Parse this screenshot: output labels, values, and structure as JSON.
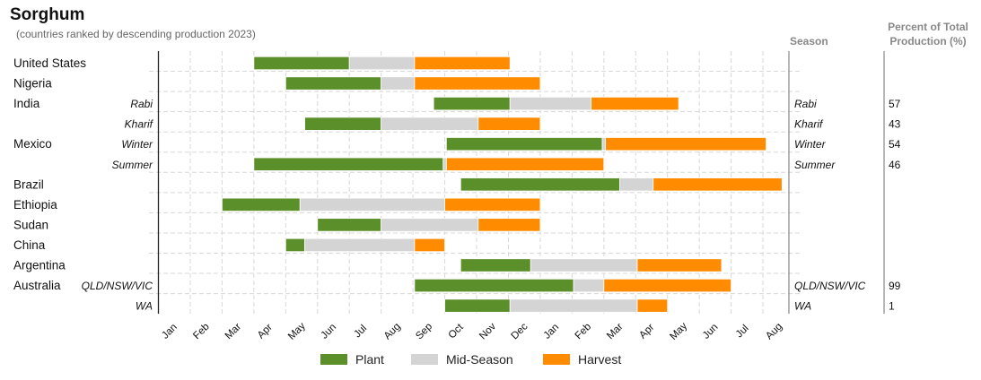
{
  "title": "Sorghum",
  "subtitle": "(countries ranked by descending production 2023)",
  "headers": {
    "season": "Season",
    "percent_line1": "Percent of Total",
    "percent_line2": "Production (%)"
  },
  "colors": {
    "Plant": "#5a8f29",
    "Mid-Season": "#d4d4d4",
    "Harvest": "#ff8c00"
  },
  "chart_data": {
    "type": "gantt",
    "x_unit": "month (0 = start of January, 20 = start of September of following year)",
    "months": [
      "Jan",
      "Feb",
      "Mar",
      "Apr",
      "May",
      "Jun",
      "Jul",
      "Aug",
      "Sep",
      "Oct",
      "Nov",
      "Dec",
      "Jan",
      "Feb",
      "Mar",
      "Apr",
      "May",
      "Jun",
      "Jul",
      "Aug"
    ],
    "legend": [
      "Plant",
      "Mid-Season",
      "Harvest"
    ],
    "rows": [
      {
        "country": "United States",
        "season": "",
        "right_season": "",
        "percent": "",
        "segments": [
          {
            "phase": "Plant",
            "start": 3.0,
            "end": 6.0
          },
          {
            "phase": "Mid-Season",
            "start": 6.0,
            "end": 8.05
          },
          {
            "phase": "Harvest",
            "start": 8.05,
            "end": 11.05
          }
        ]
      },
      {
        "country": "Nigeria",
        "season": "",
        "right_season": "",
        "percent": "",
        "segments": [
          {
            "phase": "Plant",
            "start": 4.0,
            "end": 7.0
          },
          {
            "phase": "Mid-Season",
            "start": 7.0,
            "end": 8.05
          },
          {
            "phase": "Harvest",
            "start": 8.05,
            "end": 12.0
          }
        ]
      },
      {
        "country": "India",
        "season": "Rabi",
        "right_season": "Rabi",
        "percent": "57",
        "segments": [
          {
            "phase": "Plant",
            "start": 8.65,
            "end": 11.05
          },
          {
            "phase": "Mid-Season",
            "start": 11.05,
            "end": 13.6
          },
          {
            "phase": "Harvest",
            "start": 13.6,
            "end": 16.35
          }
        ]
      },
      {
        "country": "",
        "season": "Kharif",
        "right_season": "Kharif",
        "percent": "43",
        "segments": [
          {
            "phase": "Plant",
            "start": 4.6,
            "end": 7.0
          },
          {
            "phase": "Mid-Season",
            "start": 7.0,
            "end": 10.05
          },
          {
            "phase": "Harvest",
            "start": 10.05,
            "end": 12.0
          }
        ]
      },
      {
        "country": "Mexico",
        "season": "Winter",
        "right_season": "Winter",
        "percent": "54",
        "segments": [
          {
            "phase": "Plant",
            "start": 9.05,
            "end": 13.95
          },
          {
            "phase": "Mid-Season",
            "start": 13.95,
            "end": 14.05
          },
          {
            "phase": "Harvest",
            "start": 14.05,
            "end": 19.1
          }
        ]
      },
      {
        "country": "",
        "season": "Summer",
        "right_season": "Summer",
        "percent": "46",
        "segments": [
          {
            "phase": "Plant",
            "start": 3.0,
            "end": 8.95
          },
          {
            "phase": "Mid-Season",
            "start": 8.95,
            "end": 9.05
          },
          {
            "phase": "Harvest",
            "start": 9.05,
            "end": 14.0
          }
        ]
      },
      {
        "country": "Brazil",
        "season": "",
        "right_season": "",
        "percent": "",
        "segments": [
          {
            "phase": "Plant",
            "start": 9.5,
            "end": 14.5
          },
          {
            "phase": "Mid-Season",
            "start": 14.5,
            "end": 15.55
          },
          {
            "phase": "Harvest",
            "start": 15.55,
            "end": 19.6
          }
        ]
      },
      {
        "country": "Ethiopia",
        "season": "",
        "right_season": "",
        "percent": "",
        "segments": [
          {
            "phase": "Plant",
            "start": 2.0,
            "end": 4.45
          },
          {
            "phase": "Mid-Season",
            "start": 4.45,
            "end": 9.0
          },
          {
            "phase": "Harvest",
            "start": 9.0,
            "end": 12.0
          }
        ]
      },
      {
        "country": "Sudan",
        "season": "",
        "right_season": "",
        "percent": "",
        "segments": [
          {
            "phase": "Plant",
            "start": 5.0,
            "end": 7.0
          },
          {
            "phase": "Mid-Season",
            "start": 7.0,
            "end": 10.05
          },
          {
            "phase": "Harvest",
            "start": 10.05,
            "end": 12.0
          }
        ]
      },
      {
        "country": "China",
        "season": "",
        "right_season": "",
        "percent": "",
        "segments": [
          {
            "phase": "Plant",
            "start": 4.0,
            "end": 4.6
          },
          {
            "phase": "Mid-Season",
            "start": 4.6,
            "end": 8.05
          },
          {
            "phase": "Harvest",
            "start": 8.05,
            "end": 9.0
          }
        ]
      },
      {
        "country": "Argentina",
        "season": "",
        "right_season": "",
        "percent": "",
        "segments": [
          {
            "phase": "Plant",
            "start": 9.5,
            "end": 11.7
          },
          {
            "phase": "Mid-Season",
            "start": 11.7,
            "end": 15.05
          },
          {
            "phase": "Harvest",
            "start": 15.05,
            "end": 17.7
          }
        ]
      },
      {
        "country": "Australia",
        "season": "QLD/NSW/VIC",
        "right_season": "QLD/NSW/VIC",
        "percent": "99",
        "segments": [
          {
            "phase": "Plant",
            "start": 8.05,
            "end": 13.05
          },
          {
            "phase": "Mid-Season",
            "start": 13.05,
            "end": 14.0
          },
          {
            "phase": "Harvest",
            "start": 14.0,
            "end": 18.0
          }
        ]
      },
      {
        "country": "",
        "season": "WA",
        "right_season": "WA",
        "percent": "1",
        "segments": [
          {
            "phase": "Plant",
            "start": 9.0,
            "end": 11.05
          },
          {
            "phase": "Mid-Season",
            "start": 11.05,
            "end": 15.05
          },
          {
            "phase": "Harvest",
            "start": 15.05,
            "end": 16.0
          }
        ]
      }
    ]
  }
}
